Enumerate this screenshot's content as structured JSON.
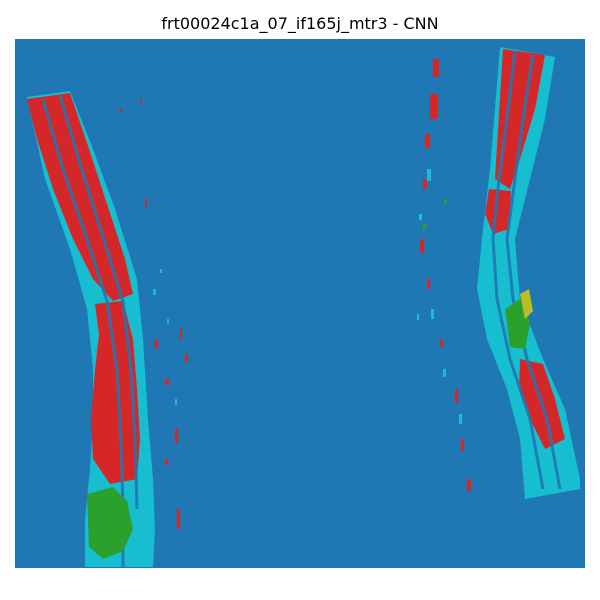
{
  "figure": {
    "title": "frt00024c1a_07_if165j_mtr3 - CNN"
  },
  "colors": {
    "background": "#1f77b4",
    "class_cyan": "#17becf",
    "class_red": "#d62728",
    "class_green": "#2ca02c",
    "class_olive": "#bcbd22"
  }
}
